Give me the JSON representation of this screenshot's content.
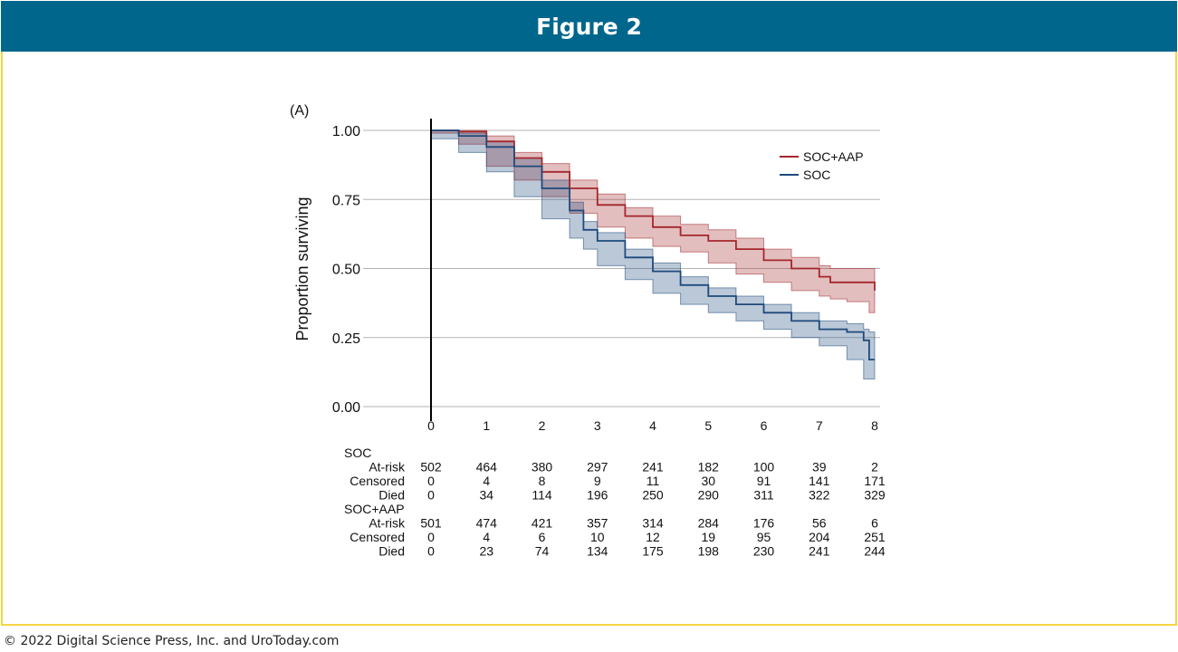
{
  "figure_title": "Figure 2",
  "footer": "© 2022 Digital Science Press, Inc. and UroToday.com",
  "colors": {
    "header_bg": "#00668c",
    "frame": "#f5d442",
    "soc": "#1e4a7b",
    "soc_aap": "#a3272c"
  },
  "chart_data": {
    "type": "line",
    "panel_label": "(A)",
    "ylabel": "Proportion surviving",
    "xlabel": "",
    "xlim": [
      0,
      8
    ],
    "ylim": [
      0,
      1
    ],
    "x_ticks": [
      "0",
      "1",
      "2",
      "3",
      "4",
      "5",
      "6",
      "7",
      "8"
    ],
    "y_ticks": [
      "0.00",
      "0.25",
      "0.50",
      "0.75",
      "1.00"
    ],
    "y_tick_values": [
      0,
      0.25,
      0.5,
      0.75,
      1.0
    ],
    "legend": [
      "SOC+AAP",
      "SOC"
    ],
    "series": [
      {
        "name": "SOC+AAP",
        "color": "#a3272c",
        "x": [
          0,
          0.5,
          1.0,
          1.5,
          2.0,
          2.5,
          3.0,
          3.5,
          4.0,
          4.5,
          5.0,
          5.5,
          6.0,
          6.5,
          7.0,
          7.2,
          7.5,
          7.9,
          8.0
        ],
        "y": [
          1.0,
          0.995,
          0.96,
          0.9,
          0.85,
          0.79,
          0.73,
          0.69,
          0.65,
          0.62,
          0.6,
          0.57,
          0.53,
          0.5,
          0.47,
          0.45,
          0.45,
          0.45,
          0.42
        ],
        "lower": [
          1.0,
          0.99,
          0.95,
          0.87,
          0.82,
          0.76,
          0.7,
          0.65,
          0.61,
          0.58,
          0.56,
          0.52,
          0.48,
          0.45,
          0.42,
          0.4,
          0.39,
          0.38,
          0.34
        ],
        "upper": [
          1.0,
          1.0,
          0.98,
          0.92,
          0.88,
          0.82,
          0.77,
          0.72,
          0.69,
          0.66,
          0.64,
          0.61,
          0.57,
          0.54,
          0.51,
          0.5,
          0.5,
          0.5,
          0.5
        ]
      },
      {
        "name": "SOC",
        "color": "#1e4a7b",
        "x": [
          0,
          0.5,
          1.0,
          1.5,
          2.0,
          2.5,
          2.75,
          3.0,
          3.5,
          4.0,
          4.5,
          5.0,
          5.5,
          6.0,
          6.5,
          7.0,
          7.5,
          7.8,
          7.9,
          8.0
        ],
        "y": [
          1.0,
          0.98,
          0.94,
          0.87,
          0.79,
          0.71,
          0.64,
          0.6,
          0.54,
          0.49,
          0.44,
          0.4,
          0.37,
          0.34,
          0.31,
          0.28,
          0.27,
          0.24,
          0.17,
          0.17
        ],
        "lower": [
          1.0,
          0.97,
          0.92,
          0.85,
          0.76,
          0.68,
          0.61,
          0.57,
          0.51,
          0.46,
          0.41,
          0.37,
          0.34,
          0.31,
          0.28,
          0.25,
          0.22,
          0.17,
          0.1,
          0.1
        ],
        "upper": [
          1.0,
          0.99,
          0.96,
          0.9,
          0.82,
          0.74,
          0.67,
          0.63,
          0.57,
          0.52,
          0.47,
          0.43,
          0.4,
          0.37,
          0.34,
          0.31,
          0.3,
          0.28,
          0.27,
          0.26
        ]
      }
    ],
    "risk_table": {
      "groups": [
        {
          "name": "SOC",
          "rows": [
            {
              "label": "At-risk",
              "values": [
                "502",
                "464",
                "380",
                "297",
                "241",
                "182",
                "100",
                "39",
                "2"
              ]
            },
            {
              "label": "Censored",
              "values": [
                "0",
                "4",
                "8",
                "9",
                "11",
                "30",
                "91",
                "141",
                "171"
              ]
            },
            {
              "label": "Died",
              "values": [
                "0",
                "34",
                "114",
                "196",
                "250",
                "290",
                "311",
                "322",
                "329"
              ]
            }
          ]
        },
        {
          "name": "SOC+AAP",
          "rows": [
            {
              "label": "At-risk",
              "values": [
                "501",
                "474",
                "421",
                "357",
                "314",
                "284",
                "176",
                "56",
                "6"
              ]
            },
            {
              "label": "Censored",
              "values": [
                "0",
                "4",
                "6",
                "10",
                "12",
                "19",
                "95",
                "204",
                "251"
              ]
            },
            {
              "label": "Died",
              "values": [
                "0",
                "23",
                "74",
                "134",
                "175",
                "198",
                "230",
                "241",
                "244"
              ]
            }
          ]
        }
      ]
    }
  }
}
